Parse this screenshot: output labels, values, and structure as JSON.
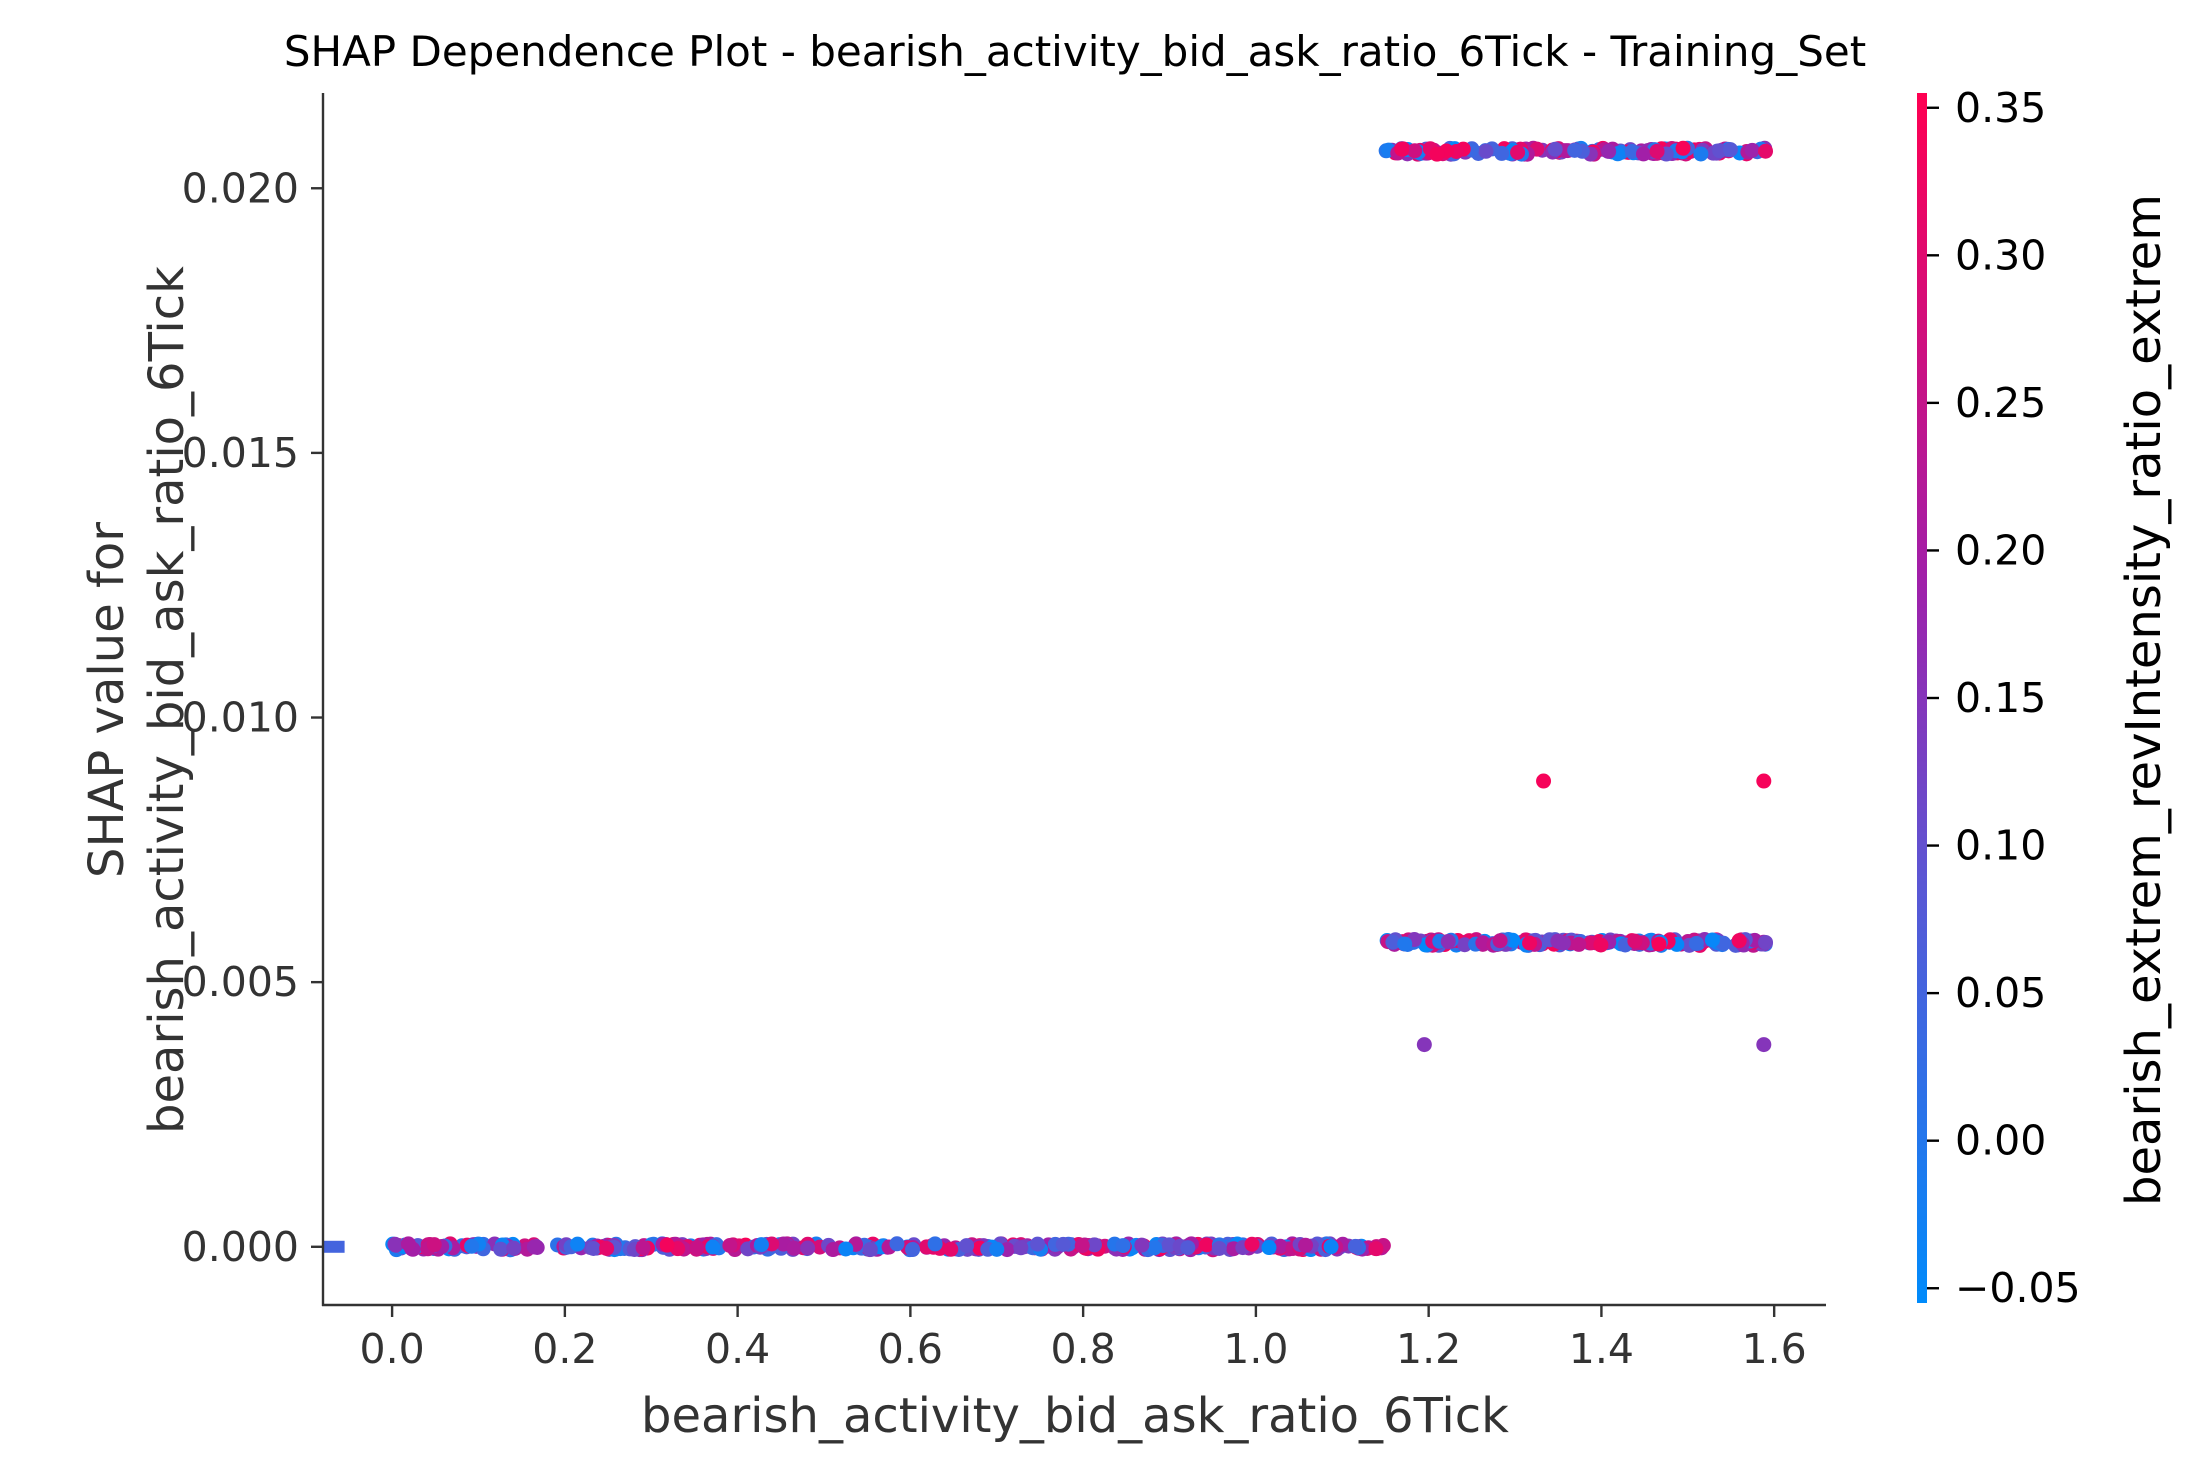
{
  "chart_data": {
    "type": "scatter",
    "title": "SHAP Dependence Plot - bearish_activity_bid_ask_ratio_6Tick - Training_Set",
    "xlabel": "bearish_activity_bid_ask_ratio_6Tick",
    "ylabel_line1": "SHAP value for",
    "ylabel_line2": "bearish_activity_bid_ask_ratio_6Tick",
    "colorbar_label": "bearish_extrem_revIntensity_ratio_extrem",
    "xlim": [
      -0.08,
      1.66
    ],
    "ylim": [
      -0.0011,
      0.0218
    ],
    "xticks": [
      "0.0",
      "0.2",
      "0.4",
      "0.6",
      "0.8",
      "1.0",
      "1.2",
      "1.4",
      "1.6"
    ],
    "yticks": [
      "0.000",
      "0.005",
      "0.010",
      "0.015",
      "0.020"
    ],
    "colorbar": {
      "min": -0.055,
      "max": 0.355,
      "ticks": [
        "−0.05",
        "0.00",
        "0.05",
        "0.10",
        "0.15",
        "0.20",
        "0.25",
        "0.30",
        "0.35"
      ],
      "colors": [
        "#008bfb",
        "#ff0052"
      ]
    },
    "series": [
      {
        "band": "missing values",
        "x_range": [
          -0.08,
          -0.055
        ],
        "y": 0.0,
        "colors": [
          0.02,
          0.08
        ]
      },
      {
        "band": "low",
        "x_range": [
          0.0,
          1.15
        ],
        "y": 0.0,
        "count": 420,
        "color_range": [
          -0.05,
          0.35
        ]
      },
      {
        "band": "middle",
        "x_range": [
          1.15,
          1.59
        ],
        "y": 0.00575,
        "count": 190,
        "color_range": [
          -0.05,
          0.35
        ]
      },
      {
        "band": "top",
        "x_range": [
          1.15,
          1.59
        ],
        "y": 0.0207,
        "count": 170,
        "color_range": [
          -0.05,
          0.35
        ]
      }
    ],
    "points": [
      {
        "x": 1.333,
        "y": 0.0088,
        "c": 0.34
      },
      {
        "x": 1.588,
        "y": 0.0088,
        "c": 0.34
      },
      {
        "x": 1.195,
        "y": 0.00382,
        "c": 0.15
      },
      {
        "x": 1.588,
        "y": 0.00382,
        "c": 0.15
      },
      {
        "x": 1.59,
        "y": 0.0207,
        "c": 0.31
      },
      {
        "x": 1.59,
        "y": 0.00575,
        "c": 0.12
      }
    ]
  }
}
